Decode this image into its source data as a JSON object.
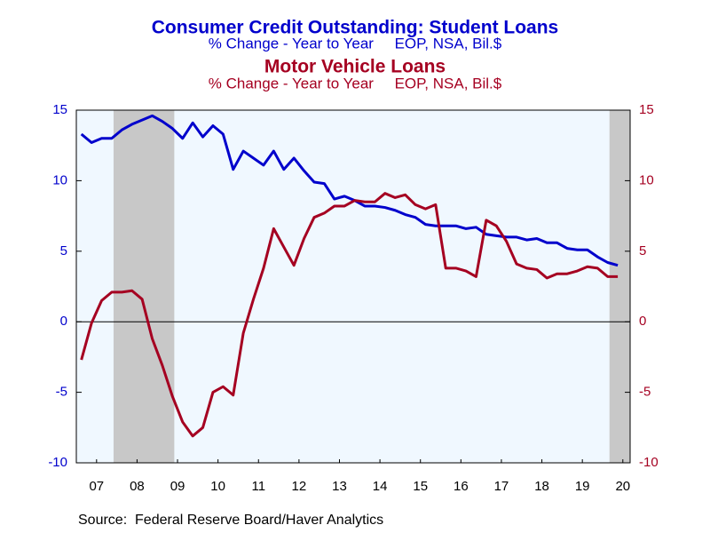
{
  "chart_data": {
    "type": "line",
    "series": [
      {
        "name": "Consumer Credit Outstanding: Student Loans",
        "subtitle": "% Change - Year to Year     EOP, NSA, Bil.$",
        "color": "#0000cc",
        "axis": "y",
        "values": [
          13.3,
          12.7,
          13.0,
          13.0,
          13.6,
          14.0,
          14.3,
          14.6,
          14.2,
          13.7,
          13.0,
          14.1,
          13.1,
          13.9,
          13.3,
          10.8,
          12.1,
          11.6,
          11.1,
          12.1,
          10.8,
          11.6,
          10.7,
          9.9,
          9.8,
          8.7,
          8.9,
          8.6,
          8.2,
          8.2,
          8.1,
          7.9,
          7.6,
          7.4,
          6.9,
          6.8,
          6.8,
          6.8,
          6.6,
          6.7,
          6.2,
          6.1,
          6.0,
          6.0,
          5.8,
          5.9,
          5.6,
          5.6,
          5.2,
          5.1,
          5.1,
          4.6,
          4.2,
          4.0
        ]
      },
      {
        "name": "Motor Vehicle Loans",
        "subtitle": "% Change - Year to Year     EOP, NSA, Bil.$",
        "color": "#a50021",
        "axis": "y2",
        "values": [
          -2.7,
          -0.1,
          1.5,
          2.1,
          2.1,
          2.2,
          1.6,
          -1.2,
          -3.1,
          -5.3,
          -7.1,
          -8.1,
          -7.5,
          -5.0,
          -4.6,
          -5.2,
          -0.8,
          1.6,
          3.8,
          6.6,
          5.3,
          4.0,
          5.9,
          7.4,
          7.7,
          8.2,
          8.2,
          8.6,
          8.5,
          8.5,
          9.1,
          8.8,
          9.0,
          8.3,
          8.0,
          8.3,
          3.8,
          3.8,
          3.6,
          3.2,
          7.2,
          6.8,
          5.7,
          4.1,
          3.8,
          3.7,
          3.1,
          3.4,
          3.4,
          3.6,
          3.9,
          3.8,
          3.2,
          3.2
        ]
      }
    ],
    "x": [
      2007.125,
      2007.375,
      2007.625,
      2007.875,
      2008.125,
      2008.375,
      2008.625,
      2008.875,
      2009.125,
      2009.375,
      2009.625,
      2009.875,
      2010.125,
      2010.375,
      2010.625,
      2010.875,
      2011.125,
      2011.375,
      2011.625,
      2011.875,
      2012.125,
      2012.375,
      2012.625,
      2012.875,
      2013.125,
      2013.375,
      2013.625,
      2013.875,
      2014.125,
      2014.375,
      2014.625,
      2014.875,
      2015.125,
      2015.375,
      2015.625,
      2015.875,
      2016.125,
      2016.375,
      2016.625,
      2016.875,
      2017.125,
      2017.375,
      2017.625,
      2017.875,
      2018.125,
      2018.375,
      2018.625,
      2018.875,
      2019.125,
      2019.375,
      2019.625,
      2019.875,
      2020.125,
      2020.375
    ],
    "xlim": [
      2007,
      2020.68
    ],
    "xticks": [
      {
        "value": 2007.5,
        "label": "07"
      },
      {
        "value": 2008.5,
        "label": "08"
      },
      {
        "value": 2009.5,
        "label": "09"
      },
      {
        "value": 2010.5,
        "label": "10"
      },
      {
        "value": 2011.5,
        "label": "11"
      },
      {
        "value": 2012.5,
        "label": "12"
      },
      {
        "value": 2013.5,
        "label": "13"
      },
      {
        "value": 2014.5,
        "label": "14"
      },
      {
        "value": 2015.5,
        "label": "15"
      },
      {
        "value": 2016.5,
        "label": "16"
      },
      {
        "value": 2017.5,
        "label": "17"
      },
      {
        "value": 2018.5,
        "label": "18"
      },
      {
        "value": 2019.5,
        "label": "19"
      },
      {
        "value": 2020.5,
        "label": "20"
      }
    ],
    "ylim": [
      -10,
      15
    ],
    "yticks": [
      -10,
      -5,
      0,
      5,
      10,
      15
    ],
    "y2lim": [
      -10,
      15
    ],
    "y2ticks": [
      -10,
      -5,
      0,
      5,
      10,
      15
    ],
    "recessions": [
      [
        2007.92,
        2009.42
      ],
      [
        2020.17,
        2020.68
      ]
    ],
    "source": "Source:  Federal Reserve Board/Haver Analytics"
  }
}
